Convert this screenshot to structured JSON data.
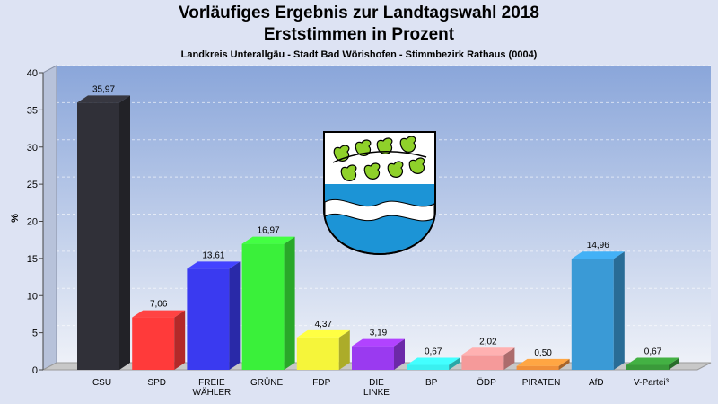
{
  "header": {
    "title": "Vorläufiges Ergebnis zur Landtagswahl 2018",
    "subtitle": "Erststimmen in Prozent",
    "caption": "Landkreis Unterallgäu - Stadt Bad Wörishofen - Stimmbezirk Rathaus (0004)"
  },
  "chart_data": {
    "type": "bar",
    "title": "Vorläufiges Ergebnis zur Landtagswahl 2018",
    "subtitle": "Erststimmen in Prozent",
    "ylabel": "%",
    "xlabel": "",
    "ylim": [
      0,
      40
    ],
    "yticks": [
      "0",
      "5",
      "10",
      "15",
      "20",
      "25",
      "30",
      "35",
      "40"
    ],
    "grid": true,
    "categories": [
      [
        "CSU"
      ],
      [
        "SPD"
      ],
      [
        "FREIE",
        "WÄHLER"
      ],
      [
        "GRÜNE"
      ],
      [
        "FDP"
      ],
      [
        "DIE",
        "LINKE"
      ],
      [
        "BP"
      ],
      [
        "ÖDP"
      ],
      [
        "PIRATEN"
      ],
      [
        "AfD"
      ],
      [
        "V-Partei³"
      ]
    ],
    "values": [
      35.97,
      7.06,
      13.61,
      16.97,
      4.37,
      3.19,
      0.67,
      2.02,
      0.5,
      14.96,
      0.67
    ],
    "value_labels": [
      "35,97",
      "7,06",
      "13,61",
      "16,97",
      "4,37",
      "3,19",
      "0,67",
      "2,02",
      "0,50",
      "14,96",
      "0,67"
    ],
    "colors": [
      "#303038",
      "#ff3a3a",
      "#3a3af0",
      "#3af03a",
      "#f5f53a",
      "#9a3af0",
      "#3af0f0",
      "#f59a9a",
      "#f0903a",
      "#3a9ad6",
      "#3a9a3a"
    ]
  }
}
